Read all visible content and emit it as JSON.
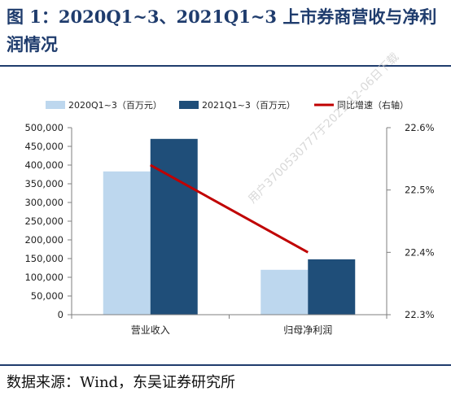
{
  "header": {
    "title": "图 1：2020Q1~3、2021Q1~3 上市券商营收与净利润情况"
  },
  "footer": {
    "source": "数据来源：Wind，东吴证券研究所"
  },
  "watermark": {
    "text": "用户3700530777于2021-12-06日下载"
  },
  "colors": {
    "series_2020": "#bdd7ee",
    "series_2021": "#1f4e79",
    "line": "#c00000",
    "title": "#1f3c6d"
  },
  "chart_data": {
    "type": "bar",
    "categories": [
      "营业收入",
      "归母净利润"
    ],
    "series": [
      {
        "name": "2020Q1~3（百万元）",
        "type": "bar",
        "axis": "left",
        "values": [
          383000,
          120000
        ]
      },
      {
        "name": "2021Q1~3（百万元）",
        "type": "bar",
        "axis": "left",
        "values": [
          470000,
          148000
        ]
      },
      {
        "name": "同比增速（右轴）",
        "type": "line",
        "axis": "right",
        "values": [
          22.54,
          22.4
        ]
      }
    ],
    "ylim": [
      0,
      500000
    ],
    "y_ticks": [
      "0",
      "50,000",
      "100,000",
      "150,000",
      "200,000",
      "250,000",
      "300,000",
      "350,000",
      "400,000",
      "450,000",
      "500,000"
    ],
    "y2lim": [
      22.3,
      22.6
    ],
    "y2_ticks": [
      "22.3%",
      "22.4%",
      "22.5%",
      "22.6%"
    ],
    "legend_position": "top",
    "grid": false
  }
}
